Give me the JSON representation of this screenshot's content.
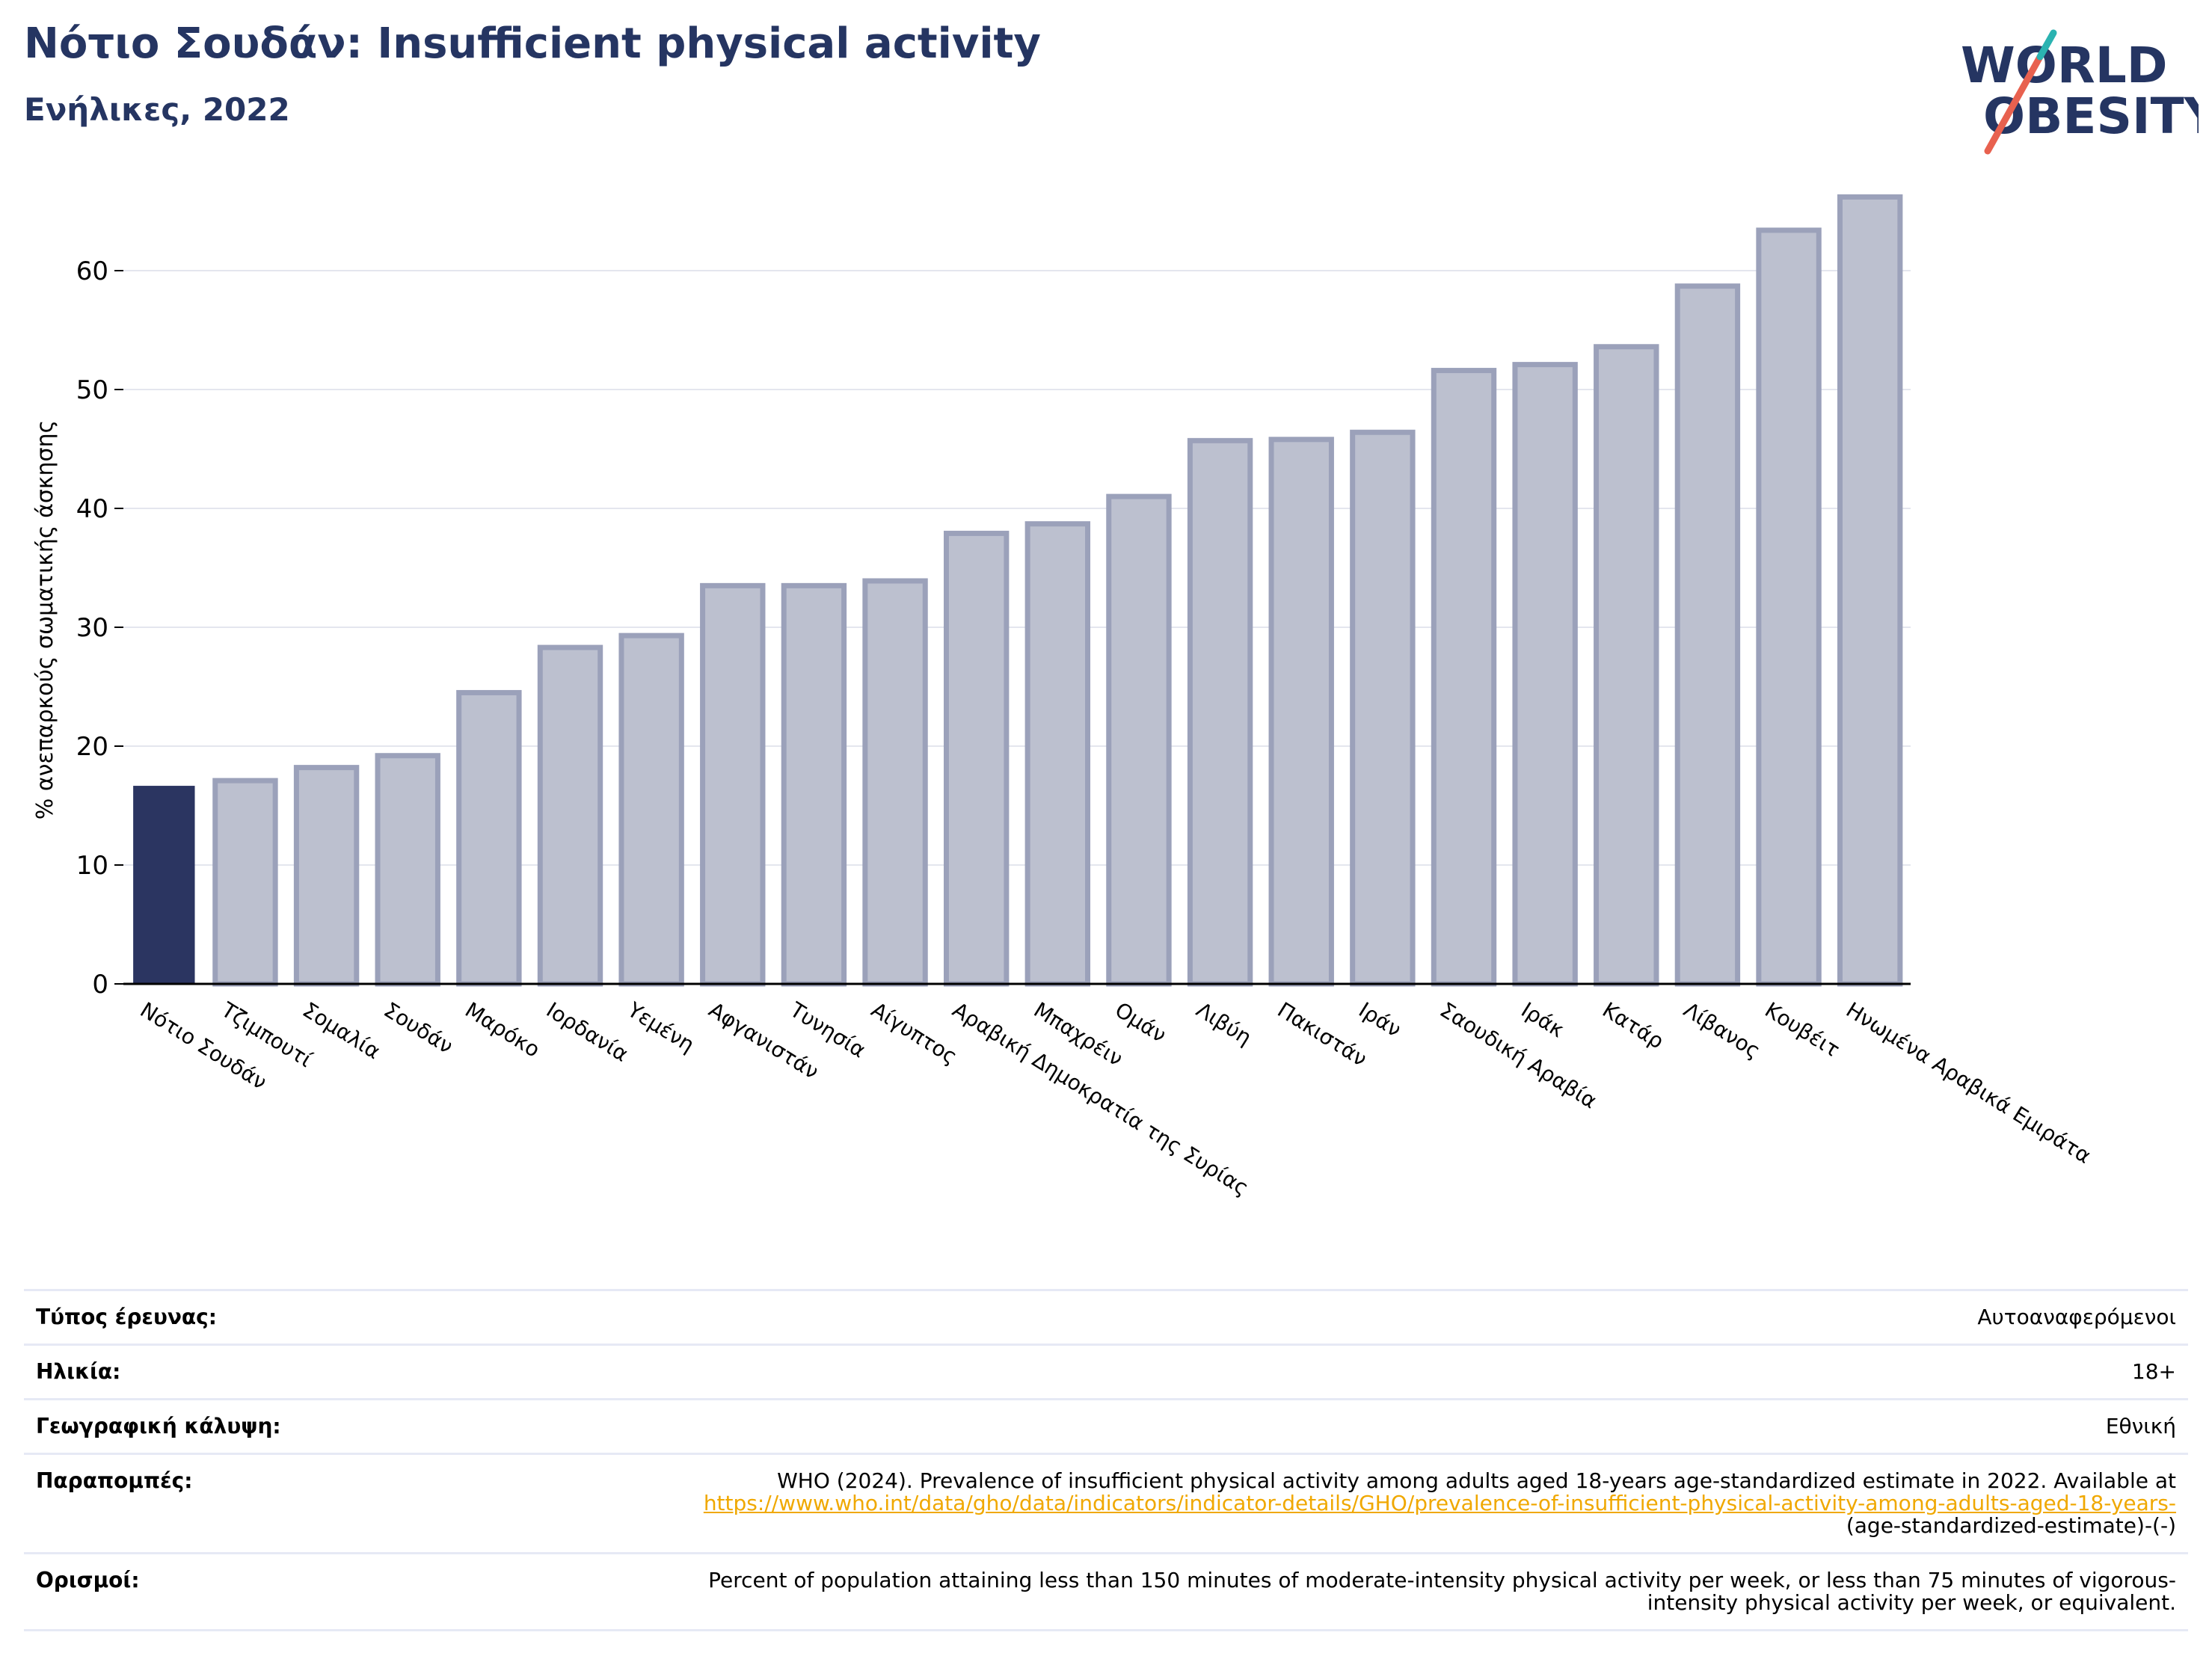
{
  "header": {
    "title": "Νότιο Σουδάν: Insufficient physical activity",
    "subtitle": "Ενήλικες, 2022"
  },
  "logo": {
    "line1": "WORLD",
    "line2": "OBESITY"
  },
  "colors": {
    "highlight": "#2b3561",
    "bar_fill": "#bcc0cf",
    "bar_stroke": "#9ba1ba",
    "title": "#253562",
    "link": "#f0a800"
  },
  "chart_data": {
    "type": "bar",
    "ylabel": "% ανεπαρκούς σωματικής άσκησης",
    "ylim": [
      0,
      66.5
    ],
    "yticks": [
      0,
      10,
      20,
      30,
      40,
      50,
      60
    ],
    "grid": true,
    "highlight_index": 0,
    "categories": [
      "Νότιο Σουδάν",
      "Τζιμπουτί",
      "Σομαλία",
      "Σουδάν",
      "Μαρόκο",
      "Ιορδανία",
      "Υεμένη",
      "Αφγανιστάν",
      "Τυνησία",
      "Αίγυπτος",
      "Αραβική Δημοκρατία της Συρίας",
      "Μπαχρέιν",
      "Ομάν",
      "Λιβύη",
      "Πακιστάν",
      "Ιράν",
      "Σαουδική Αραβία",
      "Ιράκ",
      "Κατάρ",
      "Λίβανος",
      "Κουβέιτ",
      "Ηνωμένα Αραβικά Εμιράτα"
    ],
    "values": [
      16.6,
      17.1,
      18.2,
      19.2,
      24.5,
      28.3,
      29.3,
      33.5,
      33.5,
      33.9,
      37.9,
      38.7,
      41.0,
      45.7,
      45.8,
      46.4,
      51.6,
      52.1,
      53.6,
      58.7,
      63.4,
      66.2
    ]
  },
  "info": {
    "rows": [
      {
        "label": "Τύπος έρευνας:",
        "value": "Αυτοαναφερόμενοι"
      },
      {
        "label": "Ηλικία:",
        "value": "18+"
      },
      {
        "label": "Γεωγραφική κάλυψη:",
        "value": "Εθνική"
      }
    ],
    "references": {
      "label": "Παραπομπές:",
      "text": "WHO (2024). Prevalence of insufficient physical activity among adults aged 18-years age-standardized estimate in 2022. Available at",
      "link": "https://www.who.int/data/gho/data/indicators/indicator-details/GHO/prevalence-of-insufficient-physical-activity-among-adults-aged-18-years-",
      "tail": "(age-standardized-estimate)-(-)"
    },
    "definitions": {
      "label": "Ορισμοί:",
      "line1": "Percent of population attaining less than 150 minutes of moderate-intensity physical activity per week, or less than 75 minutes of vigorous-",
      "line2": "intensity physical activity per week, or equivalent."
    }
  }
}
